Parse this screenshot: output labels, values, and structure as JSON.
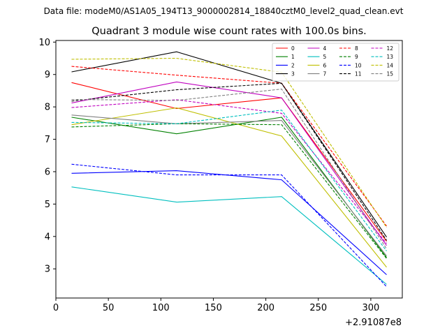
{
  "chart_data": {
    "type": "line",
    "suptitle": "Data file: modeM0/AS1A05_194T13_9000002814_18840cztM0_level2_quad_clean.evt",
    "title": "Quadrant 3 module wise count rates with 100.0s bins.",
    "xlabel": "",
    "ylabel": "",
    "x_offset_label": "+2.91087e8",
    "x": [
      15,
      115,
      215,
      315
    ],
    "xlim": [
      0,
      330
    ],
    "ylim": [
      2.1,
      10.05
    ],
    "xticks": [
      0,
      50,
      100,
      150,
      200,
      250,
      300
    ],
    "yticks": [
      3,
      4,
      5,
      6,
      7,
      8,
      9,
      10
    ],
    "legend_position": "top-right",
    "series": [
      {
        "name": "0",
        "color": "#ff0000",
        "dash": "solid",
        "values": [
          8.75,
          7.95,
          8.28,
          3.85
        ]
      },
      {
        "name": "1",
        "color": "#008000",
        "dash": "solid",
        "values": [
          7.68,
          7.17,
          7.68,
          3.35
        ]
      },
      {
        "name": "2",
        "color": "#0000ff",
        "dash": "solid",
        "values": [
          5.95,
          6.03,
          5.75,
          2.82
        ]
      },
      {
        "name": "3",
        "color": "#000000",
        "dash": "solid",
        "values": [
          9.08,
          9.7,
          8.73,
          3.98
        ]
      },
      {
        "name": "4",
        "color": "#bf00bf",
        "dash": "solid",
        "values": [
          8.12,
          8.77,
          8.28,
          3.72
        ]
      },
      {
        "name": "5",
        "color": "#00bfbf",
        "dash": "solid",
        "values": [
          5.53,
          5.06,
          5.23,
          2.52
        ]
      },
      {
        "name": "6",
        "color": "#bfbf00",
        "dash": "solid",
        "values": [
          7.45,
          7.97,
          7.1,
          3.05
        ]
      },
      {
        "name": "7",
        "color": "#808080",
        "dash": "solid",
        "values": [
          7.75,
          7.48,
          7.58,
          3.4
        ]
      },
      {
        "name": "8",
        "color": "#ff0000",
        "dash": "dashed",
        "values": [
          9.25,
          8.98,
          8.73,
          4.32
        ]
      },
      {
        "name": "9",
        "color": "#008000",
        "dash": "dashed",
        "values": [
          7.38,
          7.48,
          7.45,
          3.32
        ]
      },
      {
        "name": "10",
        "color": "#0000ff",
        "dash": "dashed",
        "values": [
          6.23,
          5.9,
          5.9,
          2.45
        ]
      },
      {
        "name": "11",
        "color": "#000000",
        "dash": "dashed",
        "values": [
          8.18,
          8.53,
          8.73,
          3.88
        ]
      },
      {
        "name": "12",
        "color": "#bf00bf",
        "dash": "dashed",
        "values": [
          7.98,
          8.22,
          7.8,
          3.78
        ]
      },
      {
        "name": "13",
        "color": "#00bfbf",
        "dash": "dashed",
        "values": [
          7.52,
          7.48,
          7.9,
          3.55
        ]
      },
      {
        "name": "14",
        "color": "#bfbf00",
        "dash": "dashed",
        "values": [
          9.47,
          9.5,
          9.07,
          4.28
        ]
      },
      {
        "name": "15",
        "color": "#808080",
        "dash": "dashed",
        "values": [
          8.23,
          8.2,
          8.55,
          3.62
        ]
      }
    ]
  }
}
